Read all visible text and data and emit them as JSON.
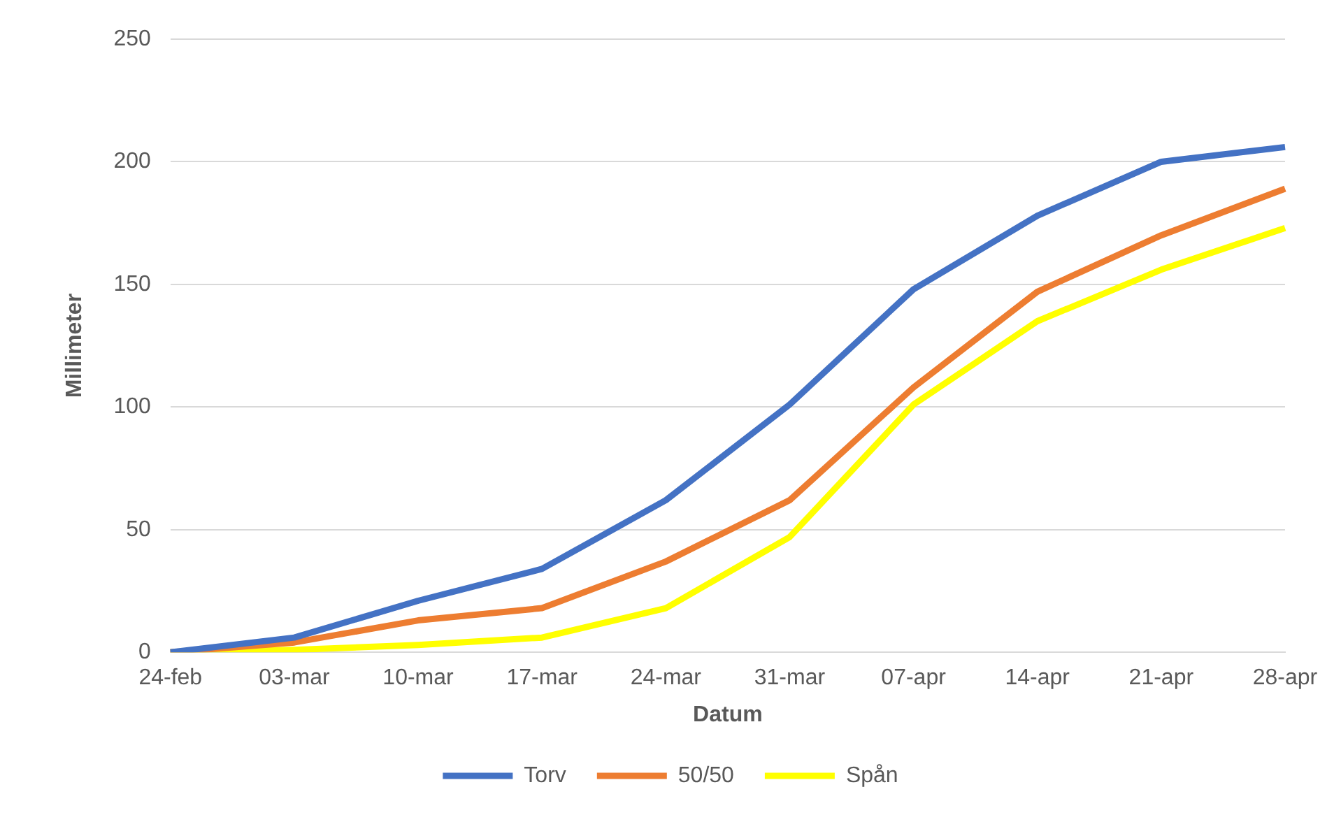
{
  "chart_data": {
    "type": "line",
    "xlabel": "Datum",
    "ylabel": "Millimeter",
    "categories": [
      "24-feb",
      "03-mar",
      "10-mar",
      "17-mar",
      "24-mar",
      "31-mar",
      "07-apr",
      "14-apr",
      "21-apr",
      "28-apr"
    ],
    "series": [
      {
        "name": "Torv",
        "color": "#4472c4",
        "values": [
          0,
          6,
          21,
          34,
          62,
          101,
          148,
          178,
          200,
          206
        ]
      },
      {
        "name": "50/50",
        "color": "#ed7d31",
        "values": [
          0,
          4,
          13,
          18,
          37,
          62,
          108,
          147,
          170,
          189
        ]
      },
      {
        "name": "Spån",
        "color": "#ffff00",
        "values": [
          0,
          1,
          3,
          6,
          18,
          47,
          101,
          135,
          156,
          173
        ]
      }
    ],
    "ylim": [
      0,
      250
    ],
    "yticks": [
      0,
      50,
      100,
      150,
      200,
      250
    ],
    "grid": "y",
    "legend": "bottom",
    "marker": "none",
    "line_style": "solid"
  }
}
